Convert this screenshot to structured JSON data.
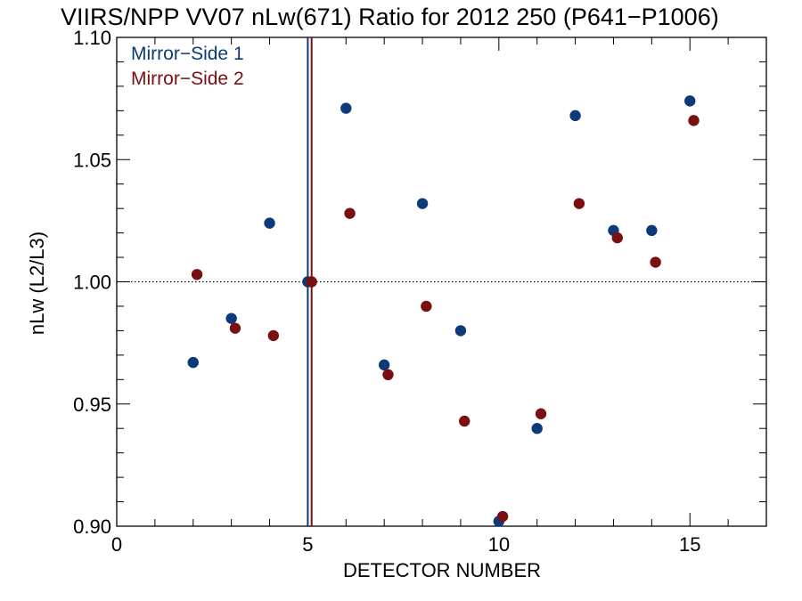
{
  "chart_data": {
    "type": "scatter",
    "title": "VIIRS/NPP VV07 nLw(671) Ratio for 2012 250 (P641−P1006)",
    "xlabel": "DETECTOR NUMBER",
    "ylabel": "nLw (L2/L3)",
    "xlim": [
      0,
      17
    ],
    "ylim": [
      0.9,
      1.1
    ],
    "xticks": [
      {
        "value": 0,
        "label": "0"
      },
      {
        "value": 5,
        "label": "5"
      },
      {
        "value": 10,
        "label": "10"
      },
      {
        "value": 15,
        "label": "15"
      }
    ],
    "yticks": [
      {
        "value": 0.9,
        "label": "0.90"
      },
      {
        "value": 0.95,
        "label": "0.95"
      },
      {
        "value": 1.0,
        "label": "1.00"
      },
      {
        "value": 1.05,
        "label": "1.05"
      },
      {
        "value": 1.1,
        "label": "1.10"
      }
    ],
    "reference_line_y": 1.0,
    "series": [
      {
        "name": "Mirror−Side 1",
        "color": "#0d3a78",
        "x": [
          2,
          3,
          4,
          5,
          6,
          7,
          8,
          9,
          10,
          11,
          12,
          13,
          14,
          15
        ],
        "y": [
          0.967,
          0.985,
          1.024,
          1.0,
          1.071,
          0.966,
          1.032,
          0.98,
          0.902,
          0.94,
          1.068,
          1.021,
          1.021,
          1.074
        ],
        "vline_x": 5.0
      },
      {
        "name": "Mirror−Side 2",
        "color": "#7a0f12",
        "x": [
          2.1,
          3.1,
          4.1,
          5.1,
          6.1,
          7.1,
          8.1,
          9.1,
          10.1,
          11.1,
          12.1,
          13.1,
          14.1,
          15.1
        ],
        "y": [
          1.003,
          0.981,
          0.978,
          1.0,
          1.028,
          0.962,
          0.99,
          0.943,
          0.904,
          0.946,
          1.032,
          1.018,
          1.008,
          1.066
        ],
        "vline_x": 5.1
      }
    ],
    "legend_position": "top-left",
    "grid": false
  }
}
